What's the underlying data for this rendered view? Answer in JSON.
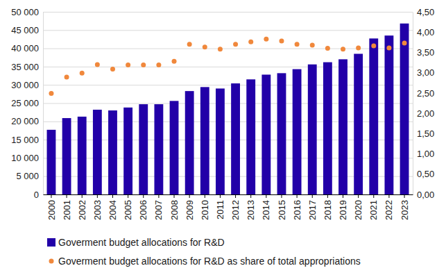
{
  "chart_data": {
    "type": "bar",
    "categories": [
      "2000",
      "2001",
      "2002",
      "2003",
      "2004",
      "2005",
      "2006",
      "2007",
      "2008",
      "2009",
      "2010",
      "2011",
      "2012",
      "2013",
      "2014",
      "2015",
      "2016",
      "2017",
      "2018",
      "2019",
      "2020",
      "2021",
      "2022",
      "2023"
    ],
    "series": [
      {
        "name": "Goverment budget allocations for R&D",
        "type": "bar",
        "color": "#2200a8",
        "values": [
          17700,
          20900,
          21300,
          23200,
          23000,
          23800,
          24700,
          24700,
          25600,
          28300,
          29400,
          29000,
          30400,
          31500,
          32800,
          33200,
          34300,
          35600,
          36200,
          37000,
          38500,
          42700,
          43500,
          46800
        ]
      },
      {
        "name": "Goverment budget allocations for R&D as share of total appropriations",
        "type": "scatter",
        "axis": "y2",
        "marker": "circle",
        "color": "#f0883c",
        "values": [
          2.49,
          2.89,
          2.99,
          3.2,
          3.09,
          3.19,
          3.19,
          3.19,
          3.28,
          3.7,
          3.63,
          3.58,
          3.7,
          3.76,
          3.83,
          3.78,
          3.7,
          3.68,
          3.6,
          3.58,
          3.61,
          3.66,
          3.61,
          3.73
        ]
      }
    ],
    "ylim": [
      0,
      50000
    ],
    "yticks": [
      0,
      {
        "value": 5000,
        "label": "5 000"
      },
      {
        "value": 10000,
        "label": "10 000"
      },
      {
        "value": 15000,
        "label": "15 000"
      },
      {
        "value": 20000,
        "label": "20 000"
      },
      {
        "value": 25000,
        "label": "25 000"
      },
      {
        "value": 30000,
        "label": "30 000"
      },
      {
        "value": 35000,
        "label": "35 000"
      },
      {
        "value": 40000,
        "label": "40 000"
      },
      {
        "value": 45000,
        "label": "45 000"
      },
      {
        "value": 50000,
        "label": "50 000"
      }
    ],
    "y2lim": [
      0,
      4.5
    ],
    "y2ticks": [
      {
        "value": 0,
        "label": "0,00"
      },
      {
        "value": 0.5,
        "label": "0,50"
      },
      {
        "value": 1,
        "label": "1,00"
      },
      {
        "value": 1.5,
        "label": "1,50"
      },
      {
        "value": 2,
        "label": "2,00"
      },
      {
        "value": 2.5,
        "label": "2,50"
      },
      {
        "value": 3,
        "label": "3,00"
      },
      {
        "value": 3.5,
        "label": "3,50"
      },
      {
        "value": 4,
        "label": "4,00"
      },
      {
        "value": 4.5,
        "label": "4,50"
      }
    ],
    "grid": true,
    "legend": "bottom"
  }
}
